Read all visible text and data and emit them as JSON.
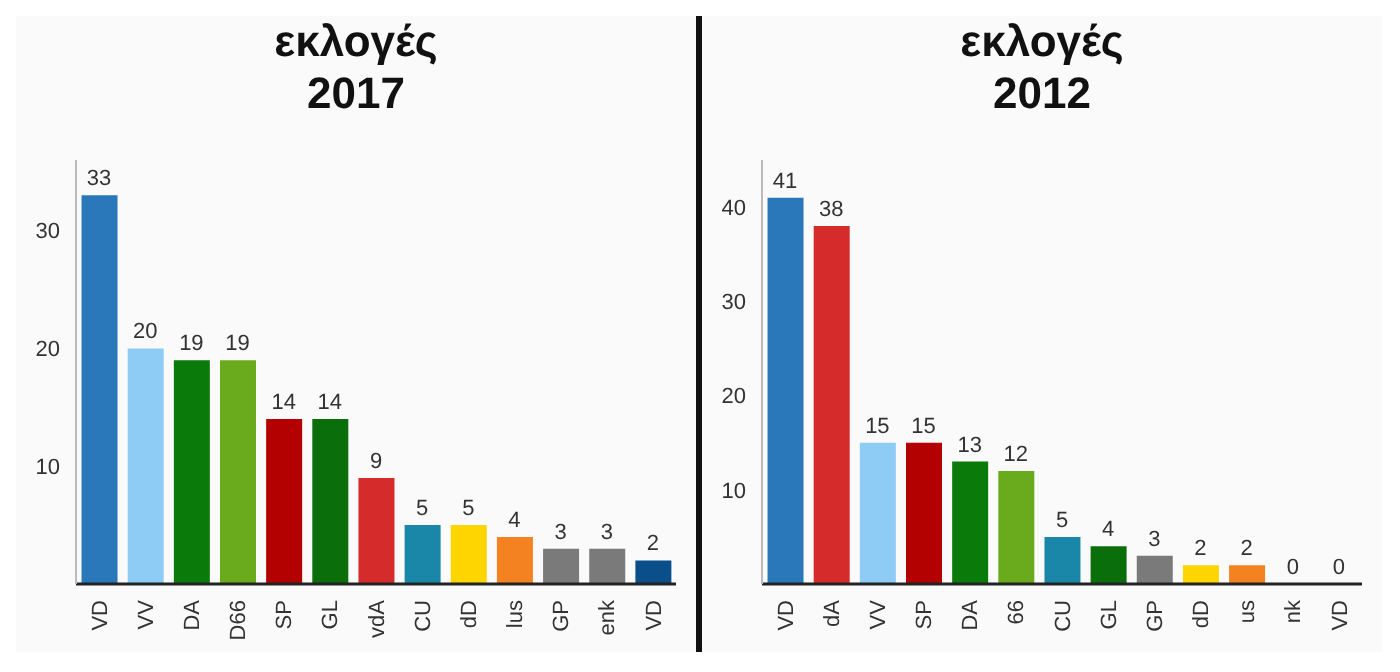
{
  "chart_data": [
    {
      "type": "bar",
      "title": "εκλογές\n2017",
      "categories": [
        "VD",
        "VV",
        "DA",
        "D66",
        "SP",
        "GL",
        "vdA",
        "CU",
        "dD",
        "lus",
        "GP",
        "enk",
        "VD"
      ],
      "values": [
        33,
        20,
        19,
        19,
        14,
        14,
        9,
        5,
        5,
        4,
        3,
        3,
        2
      ],
      "colors": [
        "#2a77b9",
        "#8ecbf5",
        "#0a7a0a",
        "#6aab1e",
        "#b30000",
        "#0a6e0a",
        "#d62b2b",
        "#1a86a8",
        "#ffd500",
        "#f58220",
        "#7a7a7a",
        "#7a7a7a",
        "#0a4f8a"
      ],
      "ylim": [
        0,
        36
      ],
      "yticks": [
        10,
        20,
        30
      ],
      "data_labels": true
    },
    {
      "type": "bar",
      "title": "εκλογές\n2012",
      "categories": [
        "VD",
        "dA",
        "VV",
        "SP",
        "DA",
        "66",
        "CU",
        "GL",
        "GP",
        "dD",
        "us",
        "nk",
        "VD"
      ],
      "values": [
        41,
        38,
        15,
        15,
        13,
        12,
        5,
        4,
        3,
        2,
        2,
        0,
        0
      ],
      "colors": [
        "#2a77b9",
        "#d62b2b",
        "#8ecbf5",
        "#b30000",
        "#0a7a0a",
        "#6aab1e",
        "#1a86a8",
        "#0a6e0a",
        "#7a7a7a",
        "#ffd500",
        "#f58220",
        "#7a7a7a",
        "#0a4f8a"
      ],
      "ylim": [
        0,
        45
      ],
      "yticks": [
        10,
        20,
        30,
        40
      ],
      "data_labels": true
    }
  ]
}
